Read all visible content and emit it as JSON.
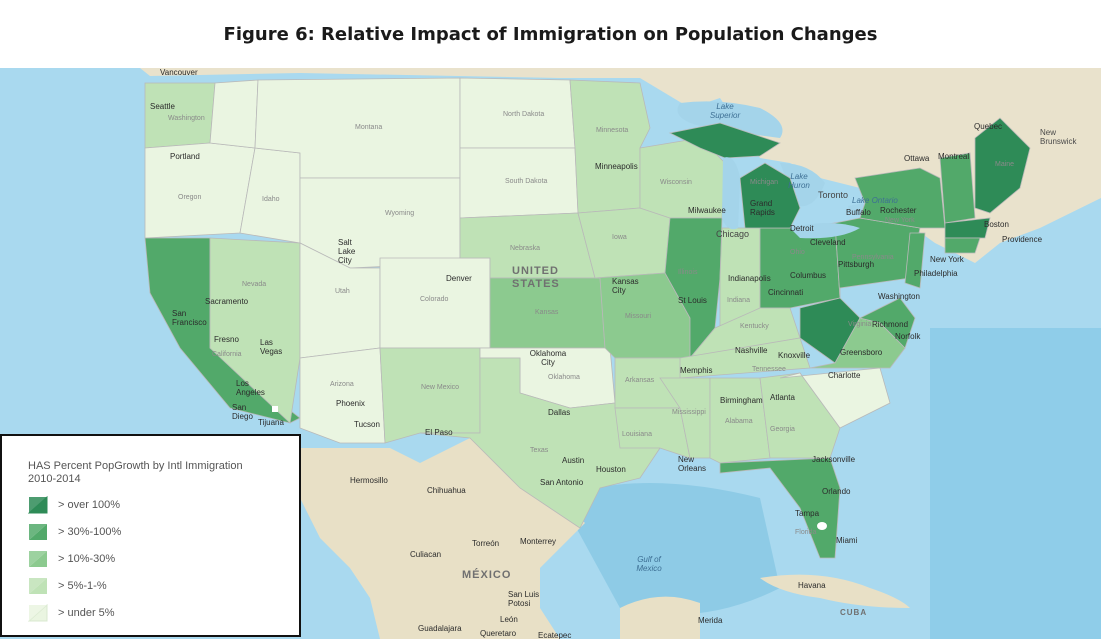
{
  "title": "Figure 6: Relative Impact of Immigration on Population Changes",
  "legend": {
    "title_line1": "HAS Percent PopGrowth by Intl Immigration",
    "title_line2": "2010-2014",
    "items": [
      {
        "label": "> over 100%",
        "color": "#2e8b57"
      },
      {
        "label": "> 30%-100%",
        "color": "#52a96a"
      },
      {
        "label": "> 10%-30%",
        "color": "#8cca8f"
      },
      {
        "label": "> 5%-1-%",
        "color": "#bfe2b6"
      },
      {
        "label": "> under 5%",
        "color": "#eaf5e1"
      }
    ]
  },
  "map_labels": {
    "countries": [
      "UNITED",
      "STATES",
      "MÉXICO",
      "CUBA"
    ],
    "cities": [
      "Vancouver",
      "Seattle",
      "Portland",
      "Sacramento",
      "San Francisco",
      "Fresno",
      "Las Vegas",
      "Los Angeles",
      "San Diego",
      "Tijuana",
      "Phoenix",
      "Tucson",
      "Salt Lake City",
      "Denver",
      "El Paso",
      "Hermosillo",
      "Chihuahua",
      "Culiacan",
      "Torreón",
      "Monterrey",
      "San Luis Potosi",
      "León",
      "Queretaro",
      "Ecatepec",
      "Guadalajara",
      "Oklahoma City",
      "Dallas",
      "Austin",
      "Houston",
      "San Antonio",
      "Kansas City",
      "Minneapolis",
      "Milwaukee",
      "Chicago",
      "Grand Rapids",
      "Detroit",
      "St Louis",
      "Indianapolis",
      "Columbus",
      "Cincinnati",
      "Pittsburgh",
      "Cleveland",
      "Toronto",
      "Ottawa",
      "Montreal",
      "Quebec",
      "Boston",
      "Providence",
      "New York",
      "Philadelphia",
      "Washington",
      "Richmond",
      "Norfolk",
      "Nashville",
      "Memphis",
      "Knoxville",
      "Greensboro",
      "Charlotte",
      "Atlanta",
      "Birmingham",
      "New Orleans",
      "Jacksonville",
      "Orlando",
      "Tampa",
      "Miami",
      "Havana",
      "Merida",
      "Buffalo",
      "Rochester"
    ],
    "states": [
      "Washington",
      "Oregon",
      "Idaho",
      "Montana",
      "Wyoming",
      "Nevada",
      "Utah",
      "Colorado",
      "California",
      "Arizona",
      "New Mexico",
      "North Dakota",
      "South Dakota",
      "Nebraska",
      "Kansas",
      "Oklahoma",
      "Texas",
      "Minnesota",
      "Iowa",
      "Missouri",
      "Arkansas",
      "Louisiana",
      "Wisconsin",
      "Illinois",
      "Kentucky",
      "Tennessee",
      "Mississippi",
      "Alabama",
      "Georgia",
      "Florida",
      "Virginia",
      "New York",
      "Pennsylvania",
      "Ohio",
      "Indiana",
      "Maine",
      "Michigan"
    ],
    "water": [
      "Lake Superior",
      "Lake Huron",
      "Lake Ontario",
      "Gulf of Mexico"
    ],
    "regions": [
      "New Brunswick"
    ]
  }
}
